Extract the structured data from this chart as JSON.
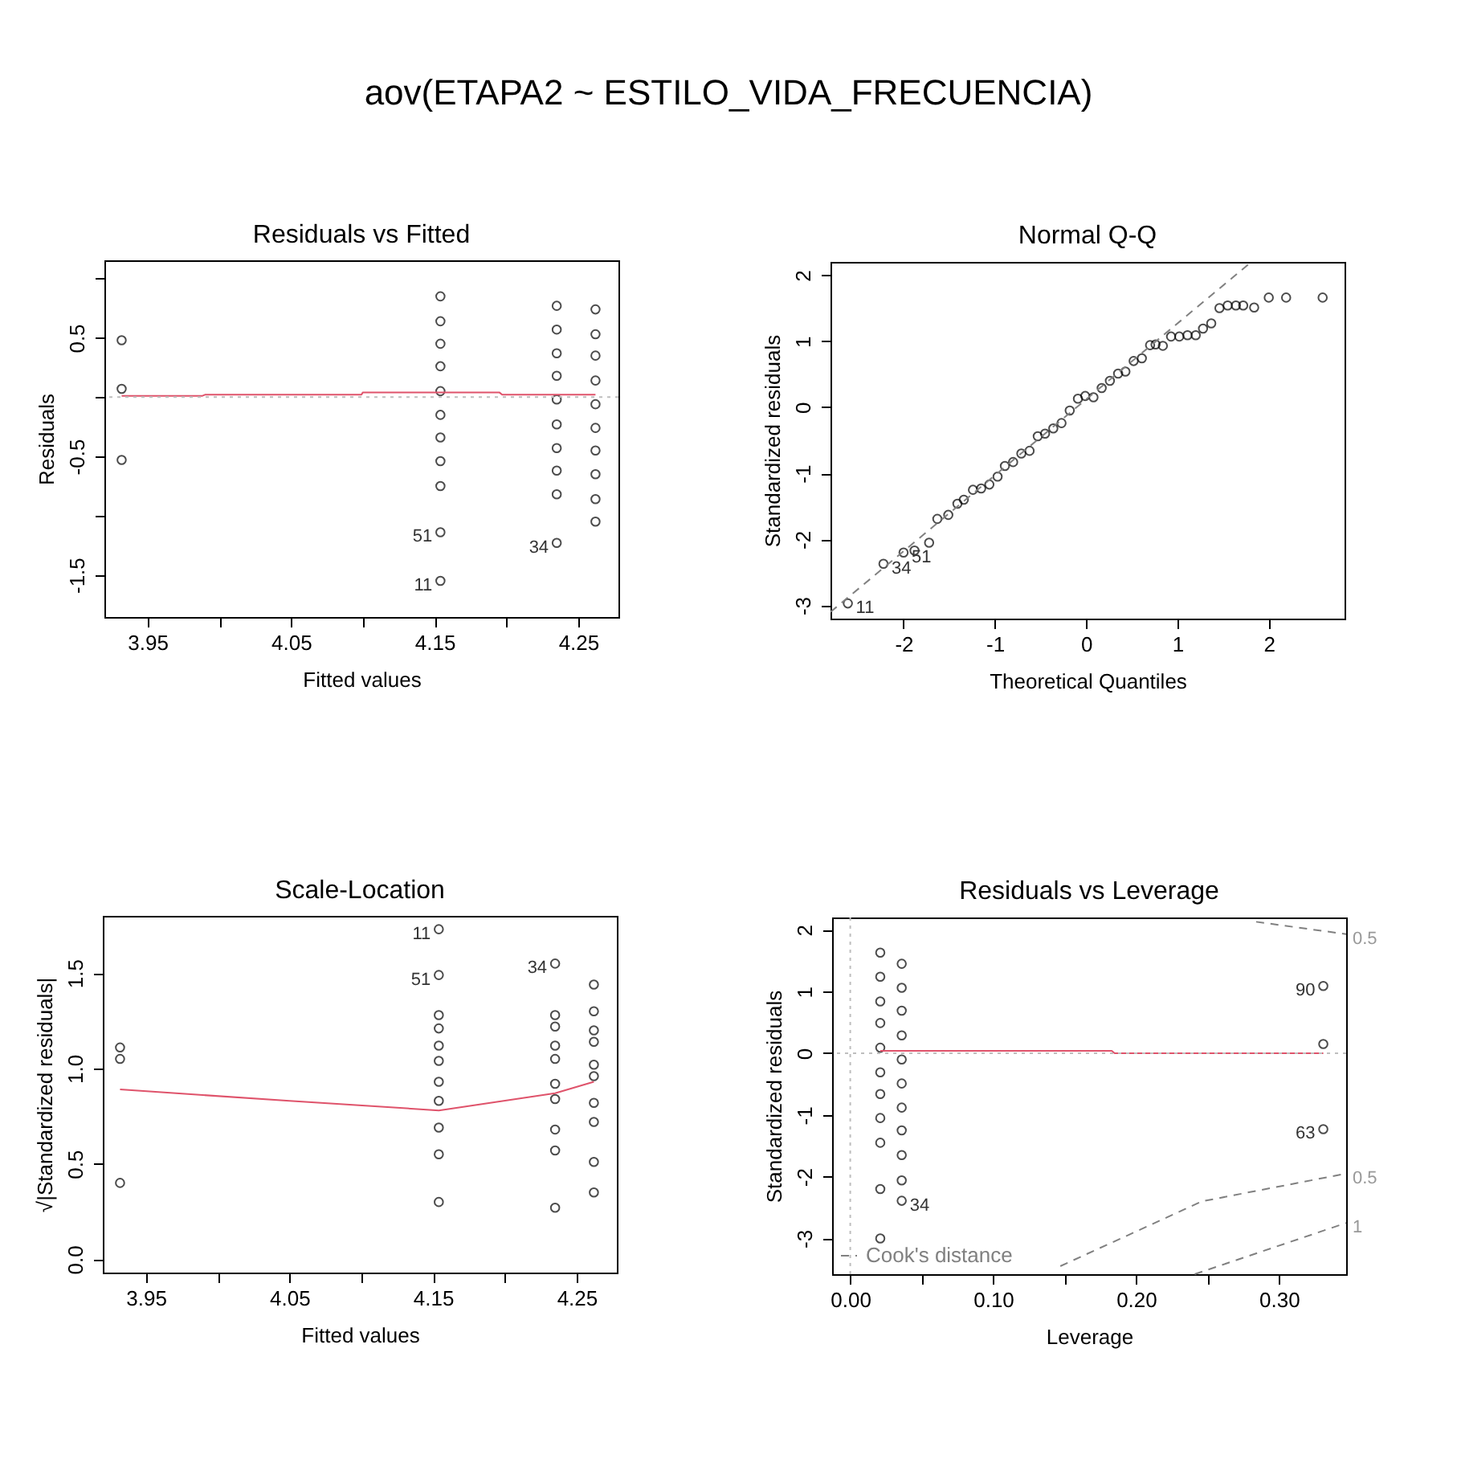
{
  "chart_data": [
    {
      "type": "scatter",
      "title": "Residuals vs Fitted",
      "xlabel": "Fitted values",
      "ylabel": "Residuals",
      "xlim": [
        3.92,
        4.278
      ],
      "ylim": [
        -1.855,
        1.154
      ],
      "xticks": [
        3.95,
        {
          "value": 4.0,
          "label": null
        },
        4.05,
        {
          "value": 4.1,
          "label": null
        },
        4.15,
        {
          "value": 4.2,
          "label": null
        },
        4.25
      ],
      "yticks": [
        -1.5,
        {
          "value": -1.0,
          "label": null
        },
        -0.5,
        {
          "value": 0,
          "label": null
        },
        0.5,
        {
          "value": 1.0,
          "label": null
        }
      ],
      "series": [
        {
          "color": "#000000",
          "marker": "circle",
          "x": [
            3.932,
            3.932,
            3.932,
            4.154,
            4.154,
            4.154,
            4.154,
            4.154,
            4.154,
            4.154,
            4.154,
            4.154,
            4.154,
            4.154,
            4.235,
            4.235,
            4.235,
            4.235,
            4.235,
            4.235,
            4.235,
            4.235,
            4.235,
            4.235,
            4.262,
            4.262,
            4.262,
            4.262,
            4.262,
            4.262,
            4.262,
            4.262,
            4.262,
            4.262
          ],
          "values": [
            0.48,
            0.07,
            -0.53,
            0.85,
            0.64,
            0.45,
            0.26,
            0.05,
            -0.15,
            -0.34,
            -0.54,
            -0.75,
            -1.14,
            -1.55,
            0.77,
            0.57,
            0.37,
            0.18,
            -0.02,
            -0.23,
            -0.43,
            -0.62,
            -0.82,
            -1.23,
            0.74,
            0.53,
            0.35,
            0.14,
            -0.06,
            -0.26,
            -0.45,
            -0.65,
            -0.86,
            -1.05
          ]
        },
        {
          "type": "line",
          "color": "#df536b",
          "x": [
            3.932,
            3.988,
            3.99,
            4.099,
            4.1,
            4.195,
            4.197,
            4.262
          ],
          "values": [
            0.01,
            0.01,
            0.02,
            0.02,
            0.04,
            0.04,
            0.02,
            0.02
          ]
        }
      ],
      "ref_lines": [
        {
          "axis": "y",
          "value": 0,
          "color": "#bebebe",
          "line_style": "dotted"
        }
      ],
      "annotations": [
        "aov(ETAPA2 ~ ESTILO_VIDA_FRECUENCIA)",
        {
          "text": "51",
          "x": 4.154,
          "y": -1.14
        },
        {
          "text": "11",
          "x": 4.154,
          "y": -1.55
        },
        {
          "text": "34",
          "x": 4.235,
          "y": -1.23
        }
      ]
    },
    {
      "type": "scatter",
      "title": "Normal Q-Q",
      "xlabel": "Theoretical Quantiles",
      "ylabel": "Standardized residuals",
      "xlim": [
        -2.8,
        2.83
      ],
      "ylim": [
        -3.2,
        2.2
      ],
      "xticks": [
        -2,
        -1,
        0,
        1,
        2
      ],
      "yticks": [
        -3,
        -2,
        -1,
        0,
        1,
        2
      ],
      "series": [
        {
          "color": "#000000",
          "marker": "circle",
          "x": [
            -2.61,
            -2.22,
            -2.0,
            -1.88,
            -1.72,
            -1.63,
            -1.51,
            -1.41,
            -1.34,
            -1.24,
            -1.15,
            -1.06,
            -0.97,
            -0.89,
            -0.8,
            -0.71,
            -0.62,
            -0.53,
            -0.45,
            -0.36,
            -0.27,
            -0.18,
            -0.09,
            -0.01,
            0.08,
            0.17,
            0.26,
            0.35,
            0.43,
            0.52,
            0.61,
            0.7,
            0.76,
            0.84,
            0.93,
            1.02,
            1.11,
            1.2,
            1.28,
            1.37,
            1.46,
            1.55,
            1.64,
            1.72,
            1.84,
            2.0,
            2.19,
            2.59
          ],
          "values": [
            -2.97,
            -2.37,
            -2.2,
            -2.17,
            -2.05,
            -1.69,
            -1.63,
            -1.46,
            -1.4,
            -1.25,
            -1.23,
            -1.17,
            -1.05,
            -0.89,
            -0.83,
            -0.7,
            -0.66,
            -0.44,
            -0.4,
            -0.32,
            -0.24,
            -0.05,
            0.13,
            0.17,
            0.15,
            0.29,
            0.4,
            0.51,
            0.54,
            0.7,
            0.74,
            0.94,
            0.95,
            0.93,
            1.07,
            1.07,
            1.09,
            1.09,
            1.19,
            1.27,
            1.5,
            1.54,
            1.54,
            1.54,
            1.51,
            1.66,
            1.66,
            1.66
          ]
        },
        {
          "type": "line",
          "color": "#808080",
          "line_style": "dashed",
          "x": [
            -2.8,
            1.81
          ],
          "values": [
            -3.1,
            2.2
          ]
        }
      ],
      "annotations": [
        {
          "text": "11",
          "x": -2.61,
          "y": -2.97
        },
        {
          "text": "34",
          "x": -2.22,
          "y": -2.37
        },
        {
          "text": "51",
          "x": -2.0,
          "y": -2.2
        }
      ]
    },
    {
      "type": "scatter",
      "title": "Scale-Location",
      "xlabel": "Fitted values",
      "ylabel": "√|Standardized residuals|",
      "xlim": [
        3.92,
        4.278
      ],
      "ylim": [
        -0.07,
        1.8
      ],
      "xticks": [
        3.95,
        {
          "value": 4.0,
          "label": null
        },
        4.05,
        {
          "value": 4.1,
          "label": null
        },
        4.15,
        {
          "value": 4.2,
          "label": null
        },
        4.25
      ],
      "yticks": [
        {
          "value": 0,
          "label": "0.0"
        },
        0.5,
        {
          "value": 1,
          "label": "1.0"
        },
        1.5
      ],
      "series": [
        {
          "color": "#000000",
          "marker": "circle",
          "x": [
            3.932,
            3.932,
            3.932,
            4.154,
            4.154,
            4.154,
            4.154,
            4.154,
            4.154,
            4.154,
            4.154,
            4.154,
            4.154,
            4.154,
            4.235,
            4.235,
            4.235,
            4.235,
            4.235,
            4.235,
            4.235,
            4.235,
            4.235,
            4.235,
            4.262,
            4.262,
            4.262,
            4.262,
            4.262,
            4.262,
            4.262,
            4.262,
            4.262,
            4.262
          ],
          "values": [
            1.11,
            1.05,
            0.4,
            1.73,
            1.49,
            1.28,
            1.21,
            1.12,
            1.04,
            0.93,
            0.83,
            0.69,
            0.55,
            0.3,
            1.55,
            1.28,
            1.22,
            1.12,
            1.05,
            0.92,
            0.84,
            0.68,
            0.57,
            0.27,
            1.44,
            1.3,
            1.2,
            1.14,
            1.02,
            0.96,
            0.82,
            0.72,
            0.51,
            0.35
          ]
        },
        {
          "type": "line",
          "color": "#df536b",
          "x": [
            3.932,
            4.05,
            4.154,
            4.235,
            4.262
          ],
          "values": [
            0.89,
            0.83,
            0.78,
            0.87,
            0.93
          ]
        }
      ],
      "annotations": [
        {
          "text": "11",
          "x": 4.154,
          "y": 1.73
        },
        {
          "text": "51",
          "x": 4.154,
          "y": 1.49
        },
        {
          "text": "34",
          "x": 4.235,
          "y": 1.55
        }
      ]
    },
    {
      "type": "scatter",
      "title": "Residuals vs Leverage",
      "xlabel": "Leverage",
      "ylabel": "Standardized residuals",
      "legend": "bottom left",
      "xlim": [
        -0.0127,
        0.347
      ],
      "ylim": [
        -3.58,
        2.2
      ],
      "xticks": [
        {
          "value": 0,
          "label": "0.00"
        },
        {
          "value": 0.05,
          "label": null
        },
        {
          "value": 0.1,
          "label": "0.10"
        },
        {
          "value": 0.15,
          "label": null
        },
        {
          "value": 0.2,
          "label": "0.20"
        },
        {
          "value": 0.25,
          "label": null
        },
        {
          "value": 0.3,
          "label": "0.30"
        }
      ],
      "yticks": [
        -3,
        -2,
        -1,
        0,
        1,
        2
      ],
      "series": [
        {
          "color": "#000000",
          "marker": "circle",
          "x": [
            0.021,
            0.021,
            0.021,
            0.021,
            0.021,
            0.021,
            0.021,
            0.021,
            0.021,
            0.021,
            0.021,
            0.036,
            0.036,
            0.036,
            0.036,
            0.036,
            0.036,
            0.036,
            0.036,
            0.036,
            0.036,
            0.036,
            0.331,
            0.331,
            0.331
          ],
          "values": [
            1.63,
            1.24,
            0.84,
            0.49,
            0.09,
            -0.31,
            -0.66,
            -1.05,
            -1.45,
            -2.2,
            -3.0,
            1.45,
            1.06,
            0.69,
            0.29,
            -0.1,
            -0.49,
            -0.88,
            -1.25,
            -1.65,
            -2.06,
            -2.39,
            1.09,
            0.15,
            -1.23
          ]
        },
        {
          "type": "line",
          "color": "#df536b",
          "x": [
            0.021,
            0.183,
            0.185,
            0.331
          ],
          "values": [
            0.04,
            0.04,
            0.0,
            0.0
          ]
        },
        {
          "type": "line",
          "name": "Cook's distance",
          "color": "#808080",
          "line_style": "dashed",
          "x": [
            0.284,
            0.347
          ],
          "values": [
            2.13,
            1.93
          ]
        },
        {
          "type": "line",
          "color": "#808080",
          "line_style": "dashed",
          "x": [
            0.147,
            0.246,
            0.347
          ],
          "values": [
            -3.45,
            -2.4,
            -1.95
          ]
        },
        {
          "type": "line",
          "color": "#808080",
          "line_style": "dashed",
          "x": [
            0.241,
            0.347
          ],
          "values": [
            -3.58,
            -2.75
          ]
        }
      ],
      "ref_lines": [
        {
          "axis": "y",
          "value": 0,
          "color": "#bebebe",
          "line_style": "dotted"
        },
        {
          "axis": "x",
          "value": 0,
          "color": "#bebebe",
          "line_style": "dotted"
        }
      ],
      "annotations": [
        {
          "text": "34",
          "x": 0.036,
          "y": -2.39
        },
        {
          "text": "90",
          "x": 0.331,
          "y": 1.09
        },
        {
          "text": "63",
          "x": 0.331,
          "y": -1.23
        },
        {
          "text": "0.5",
          "x": 0.347,
          "y": 1.93
        },
        {
          "text": "0.5",
          "x": 0.347,
          "y": -1.95
        },
        {
          "text": "1",
          "x": 0.347,
          "y": -2.75
        }
      ]
    }
  ]
}
